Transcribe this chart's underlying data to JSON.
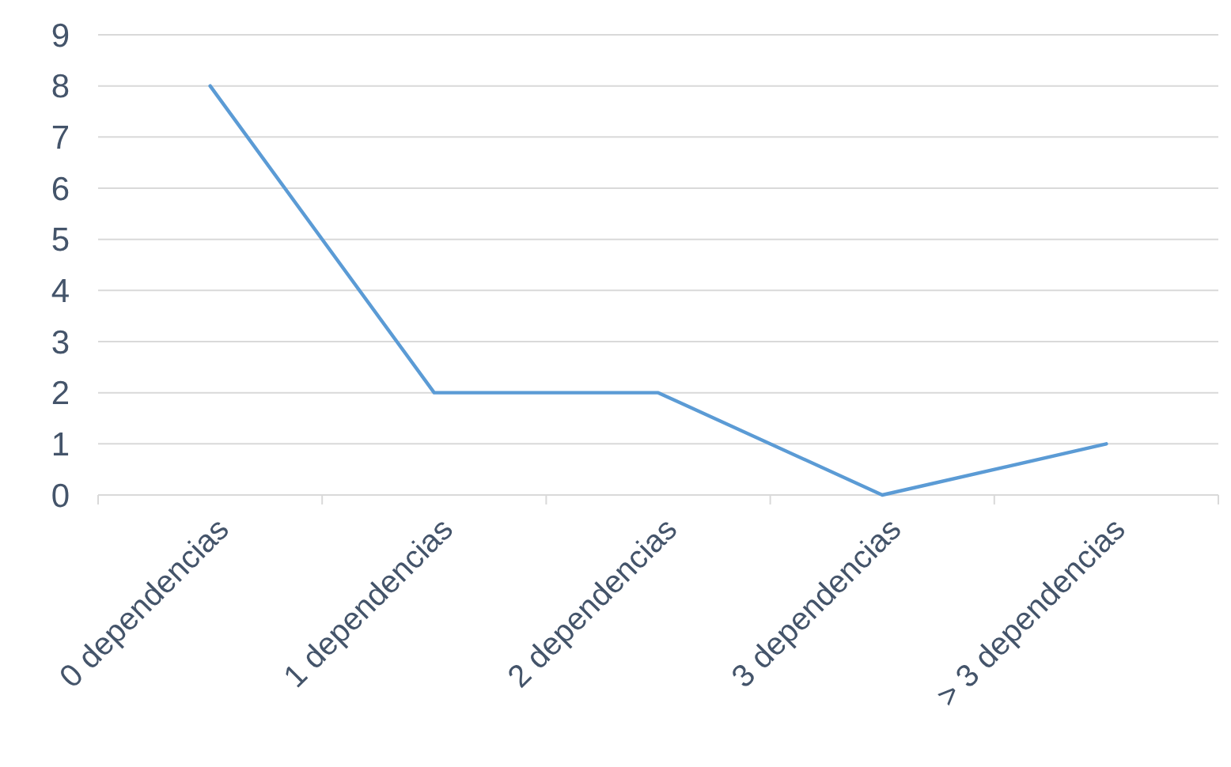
{
  "chart_data": {
    "type": "line",
    "categories": [
      "0 dependencias",
      "1 dependencias",
      "2 dependencias",
      "3 dependencias",
      "> 3 dependencias"
    ],
    "series": [
      {
        "color": "#5b9bd5",
        "values": [
          8,
          2,
          2,
          0,
          1
        ]
      }
    ],
    "ylim": [
      0,
      9
    ],
    "yticks": [
      0,
      1,
      2,
      3,
      4,
      5,
      6,
      7,
      8,
      9
    ],
    "grid": "y",
    "marker": "none",
    "line_style": "solid"
  }
}
